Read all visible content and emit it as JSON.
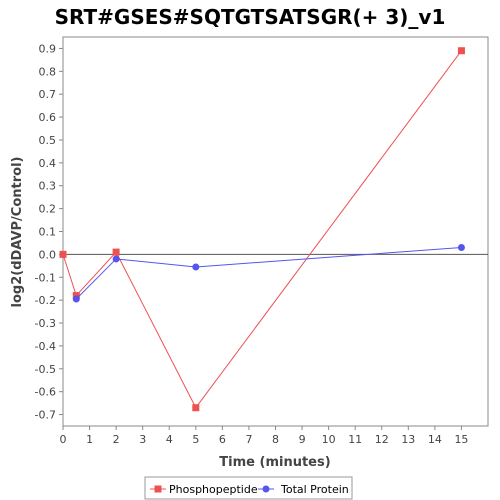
{
  "chart_data": {
    "type": "line",
    "title": "SRT#GSES#SQTGTSATSGR(+ 3)_v1",
    "xlabel": "Time (minutes)",
    "ylabel": "log2(dDAVP/Control)",
    "xlim": [
      0,
      16
    ],
    "ylim": [
      -0.75,
      0.95
    ],
    "xticks": [
      0,
      1,
      2,
      3,
      4,
      5,
      6,
      7,
      8,
      9,
      10,
      11,
      12,
      13,
      14,
      15
    ],
    "yticks": [
      -0.7,
      -0.6,
      -0.5,
      -0.4,
      -0.3,
      -0.2,
      -0.1,
      0.0,
      0.1,
      0.2,
      0.3,
      0.4,
      0.5,
      0.6,
      0.7,
      0.8,
      0.9
    ],
    "ytick_labels": [
      "-0.7",
      "-0.6",
      "-0.5",
      "-0.4",
      "-0.3",
      "-0.2",
      "-0.1",
      "0.0",
      "0.1",
      "0.2",
      "0.3",
      "0.4",
      "0.5",
      "0.6",
      "0.7",
      "0.8",
      "0.9"
    ],
    "reference_line_y": 0,
    "grid": false,
    "legend_position": "bottom",
    "series": [
      {
        "name": "Phosphopeptide",
        "marker": "square",
        "color": "#ef5050",
        "points": [
          {
            "x": 0,
            "y": 0.0
          },
          {
            "x": 0.5,
            "y": -0.18
          },
          {
            "x": 2,
            "y": 0.01
          },
          {
            "x": 5,
            "y": -0.67
          },
          {
            "x": 15,
            "y": 0.89
          }
        ]
      },
      {
        "name": "Total Protein",
        "marker": "circle",
        "color": "#5555ee",
        "points": [
          {
            "x": 0.5,
            "y": -0.195
          },
          {
            "x": 2,
            "y": -0.02
          },
          {
            "x": 5,
            "y": -0.055
          },
          {
            "x": 15,
            "y": 0.03
          }
        ]
      }
    ]
  }
}
